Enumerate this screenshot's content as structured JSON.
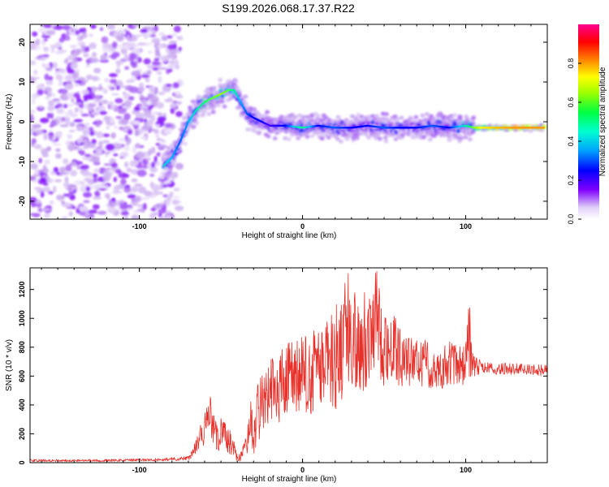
{
  "title": "S199.2026.068.17.37.R22",
  "chart_data": [
    {
      "type": "heatmap",
      "title": "S199.2026.068.17.37.R22",
      "xlabel": "Height of straight line (km)",
      "ylabel": "Frequency (Hz)",
      "xlim": [
        -167,
        150
      ],
      "ylim": [
        -24.5,
        24.5
      ],
      "xticks": [
        -100,
        0,
        100
      ],
      "yticks": [
        -20,
        -10,
        0,
        10,
        20
      ],
      "xtick_labels": [
        "-100",
        "0",
        "100"
      ],
      "ytick_labels": [
        "-20",
        "-10",
        "0",
        "10",
        "20"
      ],
      "colorbar": {
        "label": "Normalized spectral amplitude",
        "range": [
          0.0,
          1.0
        ],
        "ticks": [
          0.0,
          0.2,
          0.4,
          0.6,
          0.8
        ],
        "tick_labels": [
          "0.0",
          "0.2",
          "0.4",
          "0.6",
          "0.8"
        ],
        "colors": [
          "#ffffff",
          "#c8a8f0",
          "#8000ff",
          "#0000ff",
          "#00c0ff",
          "#00ff80",
          "#a0ff00",
          "#ffff00",
          "#ff8000",
          "#ff0000",
          "#ff0080"
        ]
      },
      "noise_region_x": [
        -167,
        -75
      ],
      "ridge": {
        "x": [
          -85,
          -80,
          -75,
          -70,
          -65,
          -60,
          -55,
          -50,
          -45,
          -42,
          -38,
          -34,
          -30,
          -25,
          -20,
          -10,
          0,
          10,
          20,
          30,
          40,
          50,
          60,
          70,
          80,
          90,
          100,
          105,
          110,
          120,
          130,
          140,
          148
        ],
        "freq": [
          -11,
          -9,
          -5,
          0,
          3,
          5,
          6,
          7,
          8,
          8,
          5,
          2,
          1,
          0,
          -1,
          -1,
          -1.5,
          -1,
          -1.5,
          -1.5,
          -1,
          -1.5,
          -1.5,
          -1.5,
          -1,
          -1.5,
          -1,
          -1.5,
          -1.5,
          -1.5,
          -1.5,
          -1.5,
          -1.5
        ],
        "amplitude": [
          0.45,
          0.4,
          0.35,
          0.38,
          0.45,
          0.5,
          0.55,
          0.6,
          0.55,
          0.5,
          0.4,
          0.35,
          0.3,
          0.3,
          0.25,
          0.3,
          0.5,
          0.3,
          0.35,
          0.3,
          0.3,
          0.35,
          0.3,
          0.3,
          0.35,
          0.3,
          0.45,
          0.55,
          0.7,
          0.75,
          0.78,
          0.78,
          0.78
        ]
      }
    },
    {
      "type": "line",
      "xlabel": "Height of straight line (km)",
      "ylabel": "SNR (10 * v/v)",
      "xlim": [
        -167,
        150
      ],
      "ylim": [
        0,
        1350
      ],
      "xticks": [
        -100,
        0,
        100
      ],
      "yticks": [
        0,
        200,
        400,
        600,
        800,
        1000,
        1200
      ],
      "xtick_labels": [
        "-100",
        "0",
        "100"
      ],
      "ytick_labels": [
        "0",
        "200",
        "400",
        "600",
        "800",
        "1000",
        "1200"
      ],
      "series": [
        {
          "name": "SNR",
          "color": "#e8302a",
          "x": [
            -167,
            -150,
            -120,
            -90,
            -70,
            -65,
            -60,
            -57,
            -55,
            -52,
            -50,
            -45,
            -42,
            -40,
            -38,
            -35,
            -32,
            -30,
            -28,
            -25,
            -22,
            -20,
            -15,
            -10,
            -5,
            0,
            5,
            10,
            15,
            20,
            22,
            25,
            28,
            30,
            35,
            40,
            42,
            45,
            50,
            55,
            60,
            65,
            70,
            75,
            80,
            85,
            90,
            95,
            100,
            102,
            105,
            110,
            120,
            130,
            140,
            150
          ],
          "values": [
            15,
            15,
            15,
            20,
            30,
            120,
            230,
            350,
            250,
            150,
            210,
            150,
            90,
            30,
            40,
            100,
            280,
            170,
            330,
            420,
            450,
            500,
            520,
            560,
            590,
            600,
            620,
            650,
            680,
            720,
            780,
            860,
            900,
            870,
            850,
            860,
            1000,
            1010,
            820,
            800,
            730,
            700,
            690,
            700,
            640,
            650,
            700,
            660,
            690,
            880,
            670,
            660,
            650,
            650,
            640,
            640
          ],
          "band": [
            8,
            8,
            8,
            10,
            15,
            60,
            110,
            150,
            120,
            90,
            110,
            90,
            60,
            20,
            30,
            70,
            170,
            120,
            200,
            230,
            240,
            250,
            260,
            270,
            280,
            280,
            290,
            300,
            320,
            360,
            420,
            420,
            420,
            390,
            350,
            360,
            360,
            350,
            300,
            250,
            200,
            180,
            160,
            170,
            130,
            140,
            180,
            140,
            140,
            300,
            80,
            40,
            40,
            40,
            40,
            40
          ]
        }
      ]
    }
  ]
}
